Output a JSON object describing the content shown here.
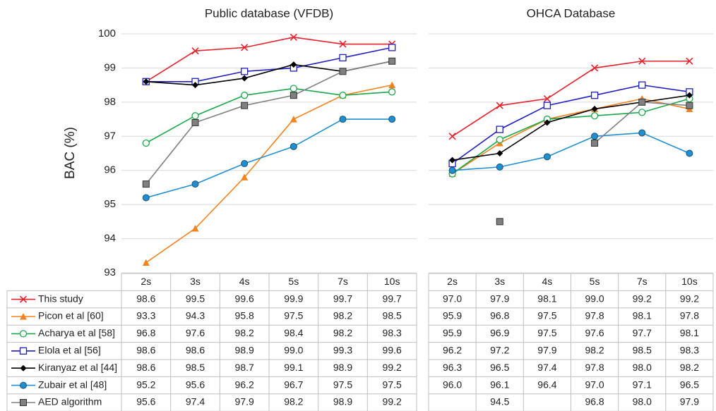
{
  "chart_data": [
    {
      "type": "line",
      "title": "Public database (VFDB)",
      "y_label": "BAC (%)",
      "categories": [
        "2s",
        "3s",
        "4s",
        "5s",
        "7s",
        "10s"
      ],
      "ylim": [
        93,
        100
      ],
      "yticks": [
        93,
        94,
        95,
        96,
        97,
        98,
        99,
        100
      ],
      "ytick_labels": true,
      "grid": true,
      "series": [
        {
          "name": "This study",
          "color": "#e8202a",
          "marker": "x",
          "values": [
            98.6,
            99.5,
            99.6,
            99.9,
            99.7,
            99.7
          ],
          "value_labels": [
            "98.6",
            "99.5",
            "99.6",
            "99.9",
            "99.7",
            "99.7"
          ]
        },
        {
          "name": "Picon et al [60]",
          "color": "#f58220",
          "marker": "triangle",
          "values": [
            93.3,
            94.3,
            95.8,
            97.5,
            98.2,
            98.5
          ],
          "value_labels": [
            "93.3",
            "94.3",
            "95.8",
            "97.5",
            "98.2",
            "98.5"
          ]
        },
        {
          "name": "Acharya et al [58]",
          "color": "#1aa84a",
          "marker": "open-circle",
          "values": [
            96.8,
            97.6,
            98.2,
            98.4,
            98.2,
            98.3
          ],
          "value_labels": [
            "96.8",
            "97.6",
            "98.2",
            "98.4",
            "98.2",
            "98.3"
          ]
        },
        {
          "name": "Elola et al [56]",
          "color": "#1f1fbf",
          "marker": "open-square",
          "values": [
            98.6,
            98.6,
            98.9,
            99.0,
            99.3,
            99.6
          ],
          "value_labels": [
            "98.6",
            "98.6",
            "98.9",
            "99.0",
            "99.3",
            "99.6"
          ]
        },
        {
          "name": "Kiranyaz et al [44]",
          "color": "#000000",
          "marker": "diamond",
          "values": [
            98.6,
            98.5,
            98.7,
            99.1,
            98.9,
            99.2
          ],
          "value_labels": [
            "98.6",
            "98.5",
            "98.7",
            "99.1",
            "98.9",
            "99.2"
          ]
        },
        {
          "name": "Zubair et al [48]",
          "color": "#1f8fd0",
          "marker": "circle",
          "values": [
            95.2,
            95.6,
            96.2,
            96.7,
            97.5,
            97.5
          ],
          "value_labels": [
            "95.2",
            "95.6",
            "96.2",
            "96.7",
            "97.5",
            "97.5"
          ]
        },
        {
          "name": "AED algorithm",
          "color": "#808080",
          "marker": "square",
          "values": [
            95.6,
            97.4,
            97.9,
            98.2,
            98.9,
            99.2
          ],
          "value_labels": [
            "95.6",
            "97.4",
            "97.9",
            "98.2",
            "98.9",
            "99.2"
          ]
        }
      ]
    },
    {
      "type": "line",
      "title": "OHCA Database",
      "categories": [
        "2s",
        "3s",
        "4s",
        "5s",
        "7s",
        "10s"
      ],
      "ylim": [
        93,
        100
      ],
      "yticks": [
        93,
        94,
        95,
        96,
        97,
        98,
        99,
        100
      ],
      "ytick_labels": false,
      "grid": true,
      "series": [
        {
          "color": "#e8202a",
          "marker": "x",
          "values": [
            97.0,
            97.9,
            98.1,
            99.0,
            99.2,
            99.2
          ],
          "value_labels": [
            "97.0",
            "97.9",
            "98.1",
            "99.0",
            "99.2",
            "99.2"
          ]
        },
        {
          "color": "#f58220",
          "marker": "triangle",
          "values": [
            95.9,
            96.8,
            97.5,
            97.8,
            98.1,
            97.8
          ],
          "value_labels": [
            "95.9",
            "96.8",
            "97.5",
            "97.8",
            "98.1",
            "97.8"
          ]
        },
        {
          "color": "#1aa84a",
          "marker": "open-circle",
          "values": [
            95.9,
            96.9,
            97.5,
            97.6,
            97.7,
            98.1
          ],
          "value_labels": [
            "95.9",
            "96.9",
            "97.5",
            "97.6",
            "97.7",
            "98.1"
          ]
        },
        {
          "color": "#1f1fbf",
          "marker": "open-square",
          "values": [
            96.2,
            97.2,
            97.9,
            98.2,
            98.5,
            98.3
          ],
          "value_labels": [
            "96.2",
            "97.2",
            "97.9",
            "98.2",
            "98.5",
            "98.3"
          ]
        },
        {
          "color": "#000000",
          "marker": "diamond",
          "values": [
            96.3,
            96.5,
            97.4,
            97.8,
            98.0,
            98.2
          ],
          "value_labels": [
            "96.3",
            "96.5",
            "97.4",
            "97.8",
            "98.0",
            "98.2"
          ]
        },
        {
          "color": "#1f8fd0",
          "marker": "circle",
          "values": [
            96.0,
            96.1,
            96.4,
            97.0,
            97.1,
            96.5
          ],
          "value_labels": [
            "96.0",
            "96.1",
            "96.4",
            "97.0",
            "97.1",
            "96.5"
          ]
        },
        {
          "color": "#808080",
          "marker": "square",
          "values": [
            null,
            94.5,
            null,
            96.8,
            98.0,
            97.9
          ],
          "value_labels": [
            null,
            "94.5",
            null,
            "96.8",
            "98.0",
            "97.9"
          ]
        }
      ]
    }
  ]
}
